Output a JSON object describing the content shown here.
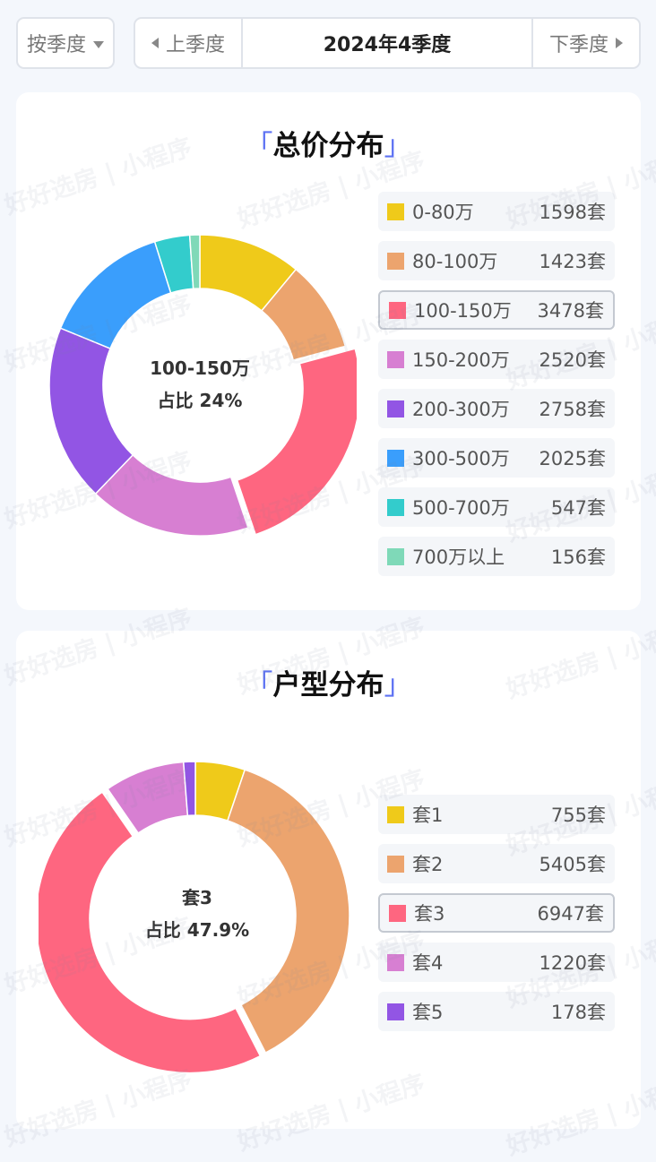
{
  "filter": {
    "mode_label": "按季度"
  },
  "period": {
    "prev_label": "上季度",
    "current": "2024年4季度",
    "next_label": "下季度"
  },
  "price_section": {
    "title": "总价分布",
    "bracket_open": "「",
    "bracket_close": "」",
    "center_label": "100-150万",
    "center_share": "占比 24%",
    "items": [
      {
        "label": "0-80万",
        "count": "1598套",
        "value": 1598,
        "color": "#efca1a"
      },
      {
        "label": "80-100万",
        "count": "1423套",
        "value": 1423,
        "color": "#eca46e"
      },
      {
        "label": "100-150万",
        "count": "3478套",
        "value": 3478,
        "color": "#fe6680",
        "selected": true
      },
      {
        "label": "150-200万",
        "count": "2520套",
        "value": 2520,
        "color": "#d77fd2"
      },
      {
        "label": "200-300万",
        "count": "2758套",
        "value": 2758,
        "color": "#9255e4"
      },
      {
        "label": "300-500万",
        "count": "2025套",
        "value": 2025,
        "color": "#3a9efc"
      },
      {
        "label": "500-700万",
        "count": "547套",
        "value": 547,
        "color": "#33cccc"
      },
      {
        "label": "700万以上",
        "count": "156套",
        "value": 156,
        "color": "#7fd9b8"
      }
    ]
  },
  "layout_section": {
    "title": "户型分布",
    "bracket_open": "「",
    "bracket_close": "」",
    "center_label": "套3",
    "center_share": "占比 47.9%",
    "items": [
      {
        "label": "套1",
        "count": "755套",
        "value": 755,
        "color": "#efca1a"
      },
      {
        "label": "套2",
        "count": "5405套",
        "value": 5405,
        "color": "#eca46e"
      },
      {
        "label": "套3",
        "count": "6947套",
        "value": 6947,
        "color": "#fe6680",
        "selected": true
      },
      {
        "label": "套4",
        "count": "1220套",
        "value": 1220,
        "color": "#d77fd2"
      },
      {
        "label": "套5",
        "count": "178套",
        "value": 178,
        "color": "#9255e4"
      }
    ]
  },
  "watermark": {
    "text": "好好选房 | 小程序"
  }
}
